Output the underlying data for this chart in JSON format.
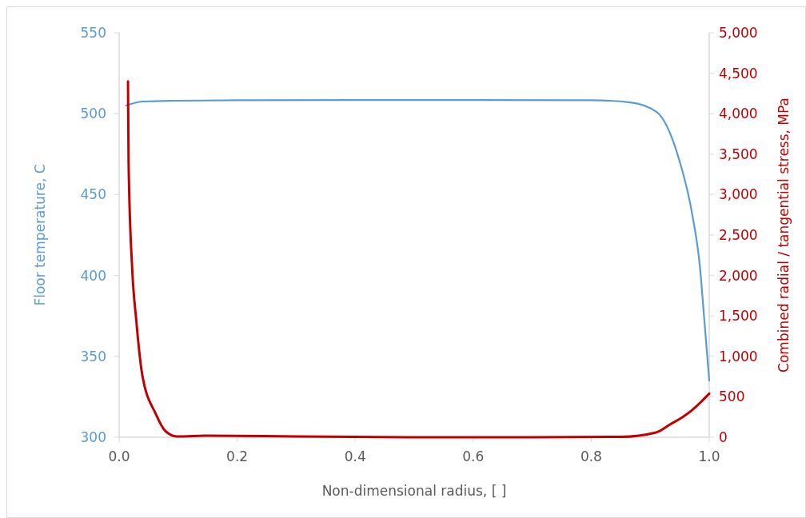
{
  "chart_data": {
    "type": "line",
    "xlabel": "Non-dimensional radius, [ ]",
    "ylabel": "Floor temperature, C",
    "y2label": "Combined radial / tangential stress, MPa",
    "xlim": [
      0,
      1
    ],
    "xticks": [
      {
        "value": 0,
        "label": "0.0"
      },
      0.2,
      0.4,
      0.6,
      0.8,
      {
        "value": 1,
        "label": "1.0"
      }
    ],
    "ylim": [
      300,
      550
    ],
    "yticks": [
      300,
      350,
      400,
      450,
      500,
      550
    ],
    "y2lim": [
      0,
      5000
    ],
    "y2ticks": [
      0,
      500,
      {
        "value": 1000,
        "label": "1,000"
      },
      {
        "value": 1500,
        "label": "1,500"
      },
      {
        "value": 2000,
        "label": "2,000"
      },
      {
        "value": 2500,
        "label": "2,500"
      },
      {
        "value": 3000,
        "label": "3,000"
      },
      {
        "value": 3500,
        "label": "3,500"
      },
      {
        "value": 4000,
        "label": "4,000"
      },
      {
        "value": 4500,
        "label": "4,500"
      },
      {
        "value": 5000,
        "label": "5,000"
      }
    ],
    "grid": false,
    "line_style": "solid",
    "marker": "none",
    "series": [
      {
        "color": "#5b9bd5",
        "x": [
          0.012,
          0.039,
          0.1,
          0.2,
          0.4,
          0.6,
          0.8,
          0.866,
          0.911,
          0.947,
          0.97,
          0.984,
          0.992,
          1.0
        ],
        "values": [
          505,
          507.5,
          508,
          508.3,
          508.4,
          508.4,
          508.3,
          507,
          501,
          474,
          440,
          406,
          371,
          335
        ]
      },
      {
        "color": "#c00000",
        "axis": "y2",
        "x": [
          0.015,
          0.016,
          0.022,
          0.029,
          0.039,
          0.062,
          0.078,
          0.098,
          0.15,
          0.3,
          0.5,
          0.7,
          0.85,
          0.91,
          0.934,
          0.955,
          0.97,
          0.985,
          1.0
        ],
        "values": [
          4400,
          3400,
          2100,
          1450,
          780,
          290,
          80,
          10,
          20,
          10,
          0,
          0,
          5,
          60,
          160,
          250,
          330,
          430,
          540
        ]
      }
    ]
  }
}
